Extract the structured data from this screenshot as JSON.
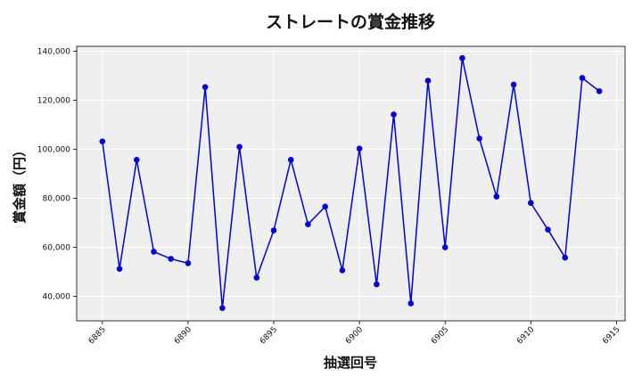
{
  "chart_data": {
    "type": "line",
    "title": "ストレートの賞金推移",
    "xlabel": "抽選回号",
    "ylabel": "賞金額（円）",
    "xlim": [
      6883.5,
      6915.5
    ],
    "ylim": [
      30000,
      142000
    ],
    "x_ticks": [
      6885,
      6890,
      6895,
      6900,
      6905,
      6910,
      6915
    ],
    "y_ticks": [
      40000,
      60000,
      80000,
      100000,
      120000,
      140000
    ],
    "x_tick_labels": [
      "6885",
      "6890",
      "6895",
      "6900",
      "6905",
      "6910",
      "6915"
    ],
    "y_tick_labels": [
      "40,000",
      "60,000",
      "80,000",
      "100,000",
      "120,000",
      "140,000"
    ],
    "grid": true,
    "series": [
      {
        "color": "#0000dd",
        "x": [
          6885,
          6886,
          6887,
          6888,
          6889,
          6890,
          6891,
          6892,
          6893,
          6894,
          6895,
          6896,
          6897,
          6898,
          6899,
          6900,
          6901,
          6902,
          6903,
          6904,
          6905,
          6906,
          6907,
          6908,
          6909,
          6910,
          6911,
          6912,
          6913,
          6914
        ],
        "values": [
          103200,
          51200,
          95700,
          58200,
          55300,
          53500,
          125400,
          35200,
          101000,
          47600,
          66900,
          95700,
          69400,
          76600,
          50600,
          100300,
          44900,
          114200,
          37100,
          128000,
          60000,
          137200,
          104400,
          80700,
          126400,
          78100,
          67200,
          55800,
          129100,
          123700
        ]
      }
    ]
  },
  "colors": {
    "plot_background": "#efefef",
    "grid": "#ffffff",
    "line": "#0000dd"
  }
}
